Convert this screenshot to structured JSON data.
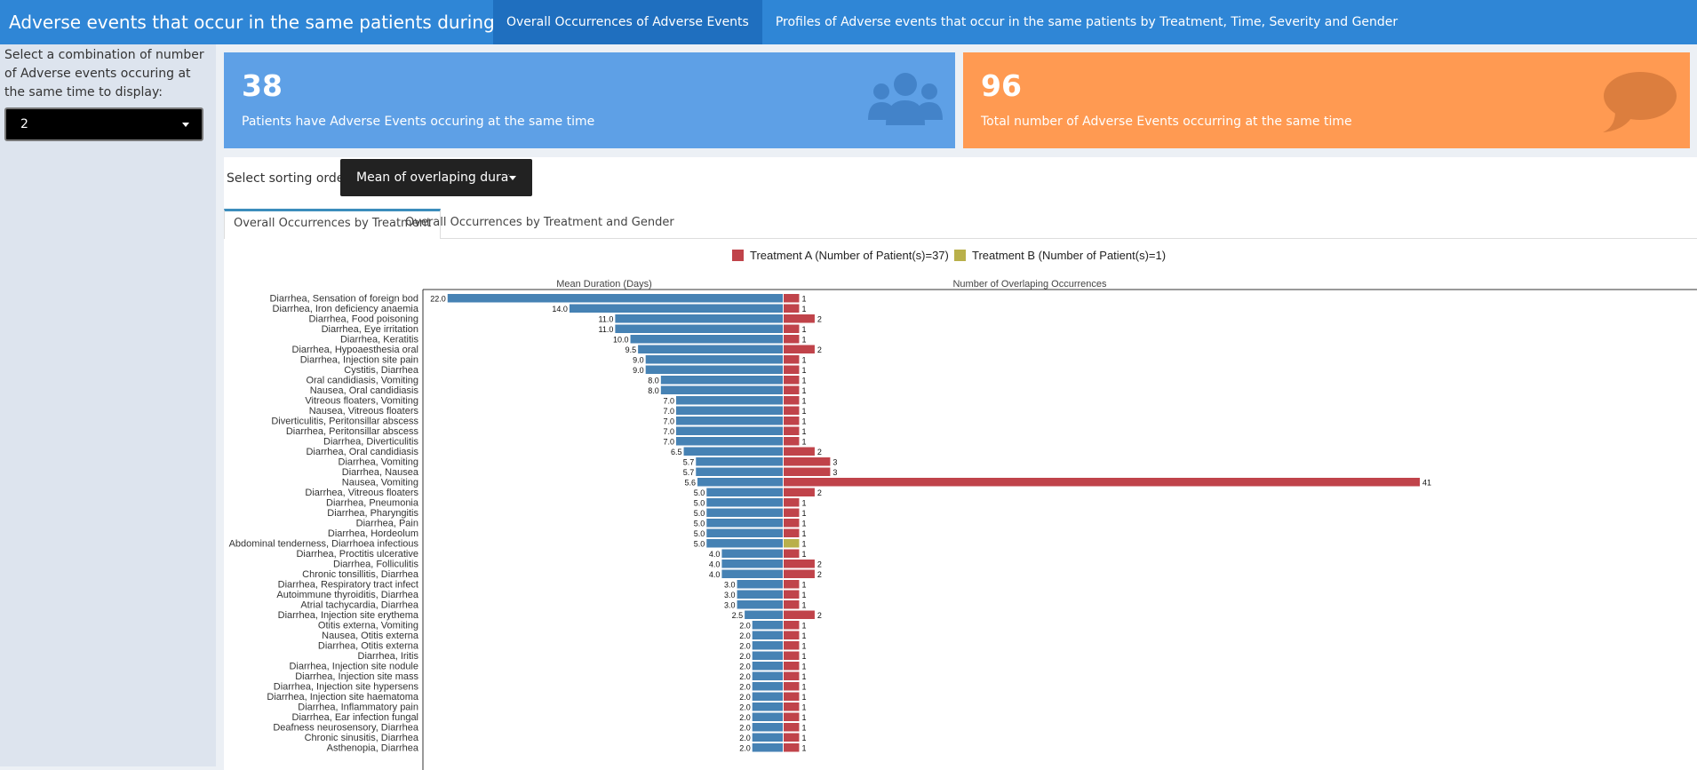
{
  "navbar": {
    "title": "Adverse events that occur in the same patients during the same time",
    "tabs": [
      {
        "label": "Overall Occurrences of Adverse Events",
        "active": true
      },
      {
        "label": "Profiles of Adverse events that occur in the same patients by Treatment, Time, Severity and Gender",
        "active": false
      }
    ]
  },
  "sidebar": {
    "label": "Select a combination of number of Adverse events occuring at the same time to display:",
    "selected": "2"
  },
  "stats": {
    "patients": {
      "value": "38",
      "text": "Patients have Adverse Events occuring at the same time",
      "icon": "users-icon",
      "color": "#5ea0e6"
    },
    "events": {
      "value": "96",
      "text": "Total number of Adverse Events occurring at the same time",
      "icon": "comment-icon",
      "color": "#ff9a52"
    }
  },
  "sorting": {
    "label": "Select sorting order:",
    "selected": "Mean of overlaping duration of ev"
  },
  "tabs": [
    {
      "label": "Overall Occurrences by Treatment",
      "active": true
    },
    {
      "label": "Overall Occurrences by Treatment and Gender",
      "active": false
    }
  ],
  "chart_data": {
    "type": "bar",
    "legend": [
      {
        "name": "Treatment A (Number of Patient(s)=37)",
        "color": "#c0434a"
      },
      {
        "name": "Treatment B (Number of Patient(s)=1)",
        "color": "#b9b04a"
      }
    ],
    "left_title": "Mean Duration (Days)",
    "right_title": "Number of Overlaping Occurrences",
    "left_color": "#4682b4",
    "categories": [
      "Diarrhea, Sensation of foreign bod",
      "Diarrhea, Iron deficiency anaemia",
      "Diarrhea, Food poisoning",
      "Diarrhea, Eye irritation",
      "Diarrhea, Keratitis",
      "Diarrhea, Hypoaesthesia oral",
      "Diarrhea, Injection site pain",
      "Cystitis, Diarrhea",
      "Oral candidiasis, Vomiting",
      "Nausea, Oral candidiasis",
      "Vitreous floaters, Vomiting",
      "Nausea, Vitreous floaters",
      "Diverticulitis, Peritonsillar abscess",
      "Diarrhea, Peritonsillar abscess",
      "Diarrhea, Diverticulitis",
      "Diarrhea, Oral candidiasis",
      "Diarrhea, Vomiting",
      "Diarrhea, Nausea",
      "Nausea, Vomiting",
      "Diarrhea, Vitreous floaters",
      "Diarrhea, Pneumonia",
      "Diarrhea, Pharyngitis",
      "Diarrhea, Pain",
      "Diarrhea, Hordeolum",
      "Abdominal tenderness, Diarrhoea infectious",
      "Diarrhea, Proctitis ulcerative",
      "Diarrhea, Folliculitis",
      "Chronic tonsillitis, Diarrhea",
      "Diarrhea, Respiratory tract infect",
      "Autoimmune thyroiditis, Diarrhea",
      "Atrial tachycardia, Diarrhea",
      "Diarrhea, Injection site erythema",
      "Otitis externa, Vomiting",
      "Nausea, Otitis externa",
      "Diarrhea, Otitis externa",
      "Diarrhea, Iritis",
      "Diarrhea, Injection site nodule",
      "Diarrhea, Injection site mass",
      "Diarrhea, Injection site hypersens",
      "Diarrhea, Injection site haematoma",
      "Diarrhea, Inflammatory pain",
      "Diarrhea, Ear infection fungal",
      "Deafness neurosensory, Diarrhea",
      "Chronic sinusitis, Diarrhea",
      "Asthenopia, Diarrhea"
    ],
    "duration": [
      22.0,
      14.0,
      11.0,
      11.0,
      10.0,
      9.5,
      9.0,
      9.0,
      8.0,
      8.0,
      7.0,
      7.0,
      7.0,
      7.0,
      7.0,
      6.5,
      5.7,
      5.7,
      5.6,
      5.0,
      5.0,
      5.0,
      5.0,
      5.0,
      5.0,
      4.0,
      4.0,
      4.0,
      3.0,
      3.0,
      3.0,
      2.5,
      2.0,
      2.0,
      2.0,
      2.0,
      2.0,
      2.0,
      2.0,
      2.0,
      2.0,
      2.0,
      2.0,
      2.0,
      2.0
    ],
    "duration_labels": [
      "22.0",
      "14.0",
      "11.0",
      "11.0",
      "10.0",
      "9.5",
      "9.0",
      "9.0",
      "8.0",
      "8.0",
      "7.0",
      "7.0",
      "7.0",
      "7.0",
      "7.0",
      "6.5",
      "5.7",
      "5.7",
      "5.6",
      "5.0",
      "5.0",
      "5.0",
      "5.0",
      "5.0",
      "5.0",
      "4.0",
      "4.0",
      "4.0",
      "3.0",
      "3.0",
      "3.0",
      "2.5",
      "2.0",
      "2.0",
      "2.0",
      "2.0",
      "2.0",
      "2.0",
      "2.0",
      "2.0",
      "2.0",
      "2.0",
      "2.0",
      "2.0",
      "2.0"
    ],
    "occurrences": [
      1,
      1,
      2,
      1,
      1,
      2,
      1,
      1,
      1,
      1,
      1,
      1,
      1,
      1,
      1,
      2,
      3,
      3,
      41,
      2,
      1,
      1,
      1,
      1,
      1,
      1,
      2,
      2,
      1,
      1,
      1,
      2,
      1,
      1,
      1,
      1,
      1,
      1,
      1,
      1,
      1,
      1,
      1,
      1,
      1
    ],
    "treatment": [
      "A",
      "A",
      "A",
      "A",
      "A",
      "A",
      "A",
      "A",
      "A",
      "A",
      "A",
      "A",
      "A",
      "A",
      "A",
      "A",
      "A",
      "A",
      "A",
      "A",
      "A",
      "A",
      "A",
      "A",
      "B",
      "A",
      "A",
      "A",
      "A",
      "A",
      "A",
      "A",
      "A",
      "A",
      "A",
      "A",
      "A",
      "A",
      "A",
      "A",
      "A",
      "A",
      "A",
      "A",
      "A"
    ],
    "duration_max": 22,
    "occurrence_max": 41
  }
}
